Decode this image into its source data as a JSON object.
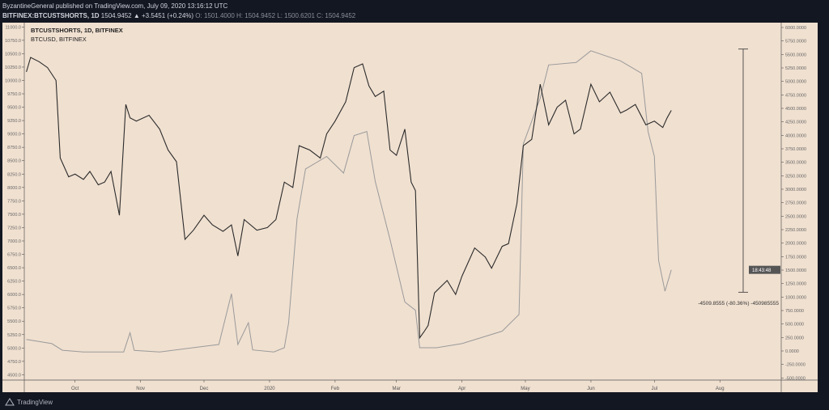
{
  "header": {
    "publisher_line": "ByzantineGeneral published on TradingView.com, July 09, 2020 13:16:12 UTC",
    "symbol": "BITFINEX:BTCUSTSHORTS, 1D",
    "last": "1504.9452",
    "change": "▲ +3.5451 (+0.24%)",
    "ohlc": "O: 1501.4000 H: 1504.9452 L: 1500.6201 C: 1504.9452"
  },
  "footer": {
    "brand": "TradingView"
  },
  "colors": {
    "background": "#f0e0d0",
    "frame": "#131722",
    "btcusd": "#2b2b2b",
    "shorts": "#9a9a9a"
  },
  "chart_data": {
    "type": "line",
    "legend": [
      "BTCUSTSHORTS, 1D, BITFINEX",
      "BTCUSD, BITFINEX"
    ],
    "x_ticks": [
      {
        "label": "Oct",
        "date": "2019-10-01"
      },
      {
        "label": "Nov",
        "date": "2019-11-01"
      },
      {
        "label": "Dec",
        "date": "2019-12-01"
      },
      {
        "label": "2020",
        "date": "2020-01-01"
      },
      {
        "label": "Feb",
        "date": "2020-02-01"
      },
      {
        "label": "Mar",
        "date": "2020-03-01"
      },
      {
        "label": "Apr",
        "date": "2020-04-01"
      },
      {
        "label": "May",
        "date": "2020-05-01"
      },
      {
        "label": "Jun",
        "date": "2020-06-01"
      },
      {
        "label": "Jul",
        "date": "2020-07-01"
      },
      {
        "label": "Aug",
        "date": "2020-08-01"
      }
    ],
    "xlim": [
      "2019-09-07",
      "2020-08-30"
    ],
    "left_axis": {
      "ylim": [
        4400,
        11050
      ],
      "ticks": [
        11000,
        10750,
        10500,
        10250,
        10000,
        9750,
        9500,
        9250,
        9000,
        8750,
        8500,
        8250,
        8000,
        7750,
        7500,
        7250,
        7000,
        6750,
        6500,
        6250,
        6000,
        5750,
        5500,
        5250,
        5000,
        4750,
        4500
      ],
      "decimals": 1
    },
    "right_axis": {
      "ylim": [
        -540,
        6060
      ],
      "ticks": [
        6000,
        5750,
        5500,
        5250,
        5000,
        4750,
        4500,
        4250,
        4000,
        3750,
        3500,
        3250,
        3000,
        2750,
        2500,
        2250,
        2000,
        1750,
        1500,
        1250,
        1000,
        750,
        500,
        250,
        0,
        -250,
        -500
      ],
      "decimals": 4
    },
    "series": [
      {
        "name": "BTCUSD, BITFINEX",
        "axis": "left",
        "color": "#2b2b2b",
        "points": [
          [
            "2019-09-08",
            10160
          ],
          [
            "2019-09-10",
            10430
          ],
          [
            "2019-09-14",
            10350
          ],
          [
            "2019-09-18",
            10240
          ],
          [
            "2019-09-22",
            10000
          ],
          [
            "2019-09-24",
            8550
          ],
          [
            "2019-09-28",
            8200
          ],
          [
            "2019-10-01",
            8250
          ],
          [
            "2019-10-05",
            8150
          ],
          [
            "2019-10-08",
            8300
          ],
          [
            "2019-10-12",
            8050
          ],
          [
            "2019-10-15",
            8100
          ],
          [
            "2019-10-18",
            8300
          ],
          [
            "2019-10-22",
            7480
          ],
          [
            "2019-10-25",
            9550
          ],
          [
            "2019-10-27",
            9300
          ],
          [
            "2019-10-30",
            9240
          ],
          [
            "2019-11-05",
            9350
          ],
          [
            "2019-11-10",
            9090
          ],
          [
            "2019-11-14",
            8700
          ],
          [
            "2019-11-18",
            8480
          ],
          [
            "2019-11-22",
            7030
          ],
          [
            "2019-11-26",
            7200
          ],
          [
            "2019-12-01",
            7480
          ],
          [
            "2019-12-05",
            7300
          ],
          [
            "2019-12-10",
            7180
          ],
          [
            "2019-12-14",
            7300
          ],
          [
            "2019-12-17",
            6720
          ],
          [
            "2019-12-20",
            7400
          ],
          [
            "2019-12-26",
            7200
          ],
          [
            "2019-12-31",
            7250
          ],
          [
            "2020-01-04",
            7400
          ],
          [
            "2020-01-08",
            8100
          ],
          [
            "2020-01-12",
            8000
          ],
          [
            "2020-01-15",
            8780
          ],
          [
            "2020-01-20",
            8700
          ],
          [
            "2020-01-25",
            8550
          ],
          [
            "2020-01-28",
            9000
          ],
          [
            "2020-02-01",
            9240
          ],
          [
            "2020-02-06",
            9600
          ],
          [
            "2020-02-10",
            10240
          ],
          [
            "2020-02-14",
            10310
          ],
          [
            "2020-02-17",
            9900
          ],
          [
            "2020-02-20",
            9700
          ],
          [
            "2020-02-24",
            9800
          ],
          [
            "2020-02-27",
            8700
          ],
          [
            "2020-03-01",
            8600
          ],
          [
            "2020-03-05",
            9090
          ],
          [
            "2020-03-08",
            8100
          ],
          [
            "2020-03-10",
            7940
          ],
          [
            "2020-03-12",
            5190
          ],
          [
            "2020-03-14",
            5300
          ],
          [
            "2020-03-16",
            5420
          ],
          [
            "2020-03-19",
            6030
          ],
          [
            "2020-03-25",
            6260
          ],
          [
            "2020-03-29",
            6000
          ],
          [
            "2020-04-01",
            6340
          ],
          [
            "2020-04-07",
            6870
          ],
          [
            "2020-04-12",
            6700
          ],
          [
            "2020-04-15",
            6490
          ],
          [
            "2020-04-20",
            6900
          ],
          [
            "2020-04-23",
            6950
          ],
          [
            "2020-04-27",
            7700
          ],
          [
            "2020-04-30",
            8780
          ],
          [
            "2020-05-04",
            8900
          ],
          [
            "2020-05-08",
            9930
          ],
          [
            "2020-05-12",
            9170
          ],
          [
            "2020-05-16",
            9500
          ],
          [
            "2020-05-20",
            9630
          ],
          [
            "2020-05-24",
            9000
          ],
          [
            "2020-05-27",
            9090
          ],
          [
            "2020-06-01",
            9930
          ],
          [
            "2020-06-05",
            9600
          ],
          [
            "2020-06-10",
            9780
          ],
          [
            "2020-06-15",
            9390
          ],
          [
            "2020-06-18",
            9450
          ],
          [
            "2020-06-22",
            9550
          ],
          [
            "2020-06-27",
            9170
          ],
          [
            "2020-07-01",
            9240
          ],
          [
            "2020-07-05",
            9120
          ],
          [
            "2020-07-07",
            9300
          ],
          [
            "2020-07-09",
            9440
          ]
        ]
      },
      {
        "name": "BTCUSTSHORTS, 1D, BITFINEX",
        "axis": "right",
        "color": "#9a9a9a",
        "points": [
          [
            "2019-09-08",
            213
          ],
          [
            "2019-09-20",
            136
          ],
          [
            "2019-09-25",
            13
          ],
          [
            "2019-10-05",
            -18
          ],
          [
            "2019-10-24",
            -18
          ],
          [
            "2019-10-27",
            337
          ],
          [
            "2019-10-29",
            10
          ],
          [
            "2019-11-10",
            -18
          ],
          [
            "2019-12-08",
            120
          ],
          [
            "2019-12-14",
            1062
          ],
          [
            "2019-12-17",
            120
          ],
          [
            "2019-12-22",
            522
          ],
          [
            "2019-12-24",
            20
          ],
          [
            "2020-01-03",
            -18
          ],
          [
            "2020-01-08",
            60
          ],
          [
            "2020-01-10",
            522
          ],
          [
            "2020-01-14",
            2451
          ],
          [
            "2020-01-18",
            3377
          ],
          [
            "2020-01-28",
            3608
          ],
          [
            "2020-02-05",
            3300
          ],
          [
            "2020-02-10",
            3994
          ],
          [
            "2020-02-16",
            4071
          ],
          [
            "2020-02-20",
            3145
          ],
          [
            "2020-02-27",
            2065
          ],
          [
            "2020-03-05",
            908
          ],
          [
            "2020-03-10",
            754
          ],
          [
            "2020-03-12",
            60
          ],
          [
            "2020-03-20",
            60
          ],
          [
            "2020-04-01",
            136
          ],
          [
            "2020-04-20",
            368
          ],
          [
            "2020-04-28",
            677
          ],
          [
            "2020-04-30",
            3840
          ],
          [
            "2020-05-08",
            4688
          ],
          [
            "2020-05-12",
            5306
          ],
          [
            "2020-05-25",
            5350
          ],
          [
            "2020-06-01",
            5568
          ],
          [
            "2020-06-15",
            5380
          ],
          [
            "2020-06-25",
            5150
          ],
          [
            "2020-06-28",
            4071
          ],
          [
            "2020-07-01",
            3608
          ],
          [
            "2020-07-03",
            1680
          ],
          [
            "2020-07-06",
            1108
          ],
          [
            "2020-07-09",
            1504.9452
          ]
        ]
      }
    ],
    "last_price_label": "18:43:48",
    "measurement": {
      "label": "-4509.8555 (-80.36%) -450985555",
      "from_value": 5600,
      "to_value": 1090,
      "date": "2020-08-12"
    }
  }
}
